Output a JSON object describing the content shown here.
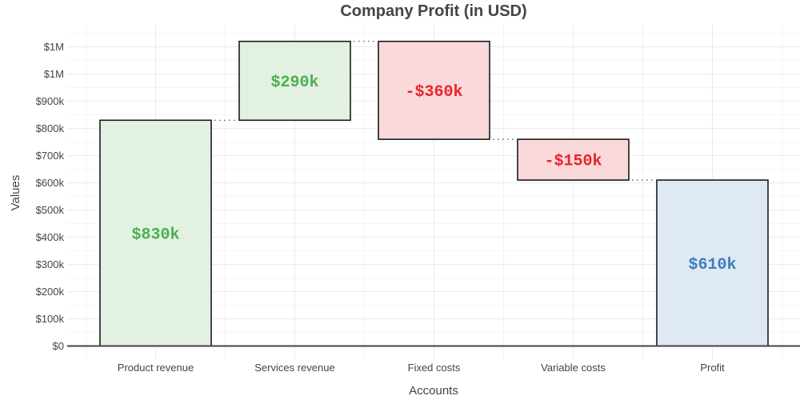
{
  "chart_data": {
    "type": "waterfall",
    "title": "Company Profit (in USD)",
    "xlabel": "Accounts",
    "ylabel": "Values",
    "categories": [
      "Product revenue",
      "Services revenue",
      "Fixed costs",
      "Variable costs",
      "Profit"
    ],
    "measures": [
      "relative",
      "relative",
      "relative",
      "relative",
      "total"
    ],
    "values": [
      830,
      290,
      -360,
      -150,
      610
    ],
    "value_unit": "thousands USD",
    "data_labels": [
      "$830k",
      "$290k",
      "-$360k",
      "-$150k",
      "$610k"
    ],
    "yticks": [
      0,
      100,
      200,
      300,
      400,
      500,
      600,
      700,
      800,
      900,
      1000,
      1100
    ],
    "ytick_labels": [
      "$0",
      "$100k",
      "$200k",
      "$300k",
      "$400k",
      "$500k",
      "$600k",
      "$700k",
      "$800k",
      "$900k",
      "$1M",
      "$1M"
    ],
    "ylim": [
      0,
      1170
    ],
    "grid": true,
    "legend": "none",
    "colors": {
      "increase_fill": "#e2f1e1",
      "increase_text": "#4caf50",
      "decrease_fill": "#fad9da",
      "decrease_text": "#e8252c",
      "total_fill": "#dfe9f3",
      "total_text": "#3a7fc0",
      "bar_stroke": "#1a1a1a",
      "connector": "#444444",
      "grid": "#ebebeb",
      "axis": "#444444"
    }
  }
}
